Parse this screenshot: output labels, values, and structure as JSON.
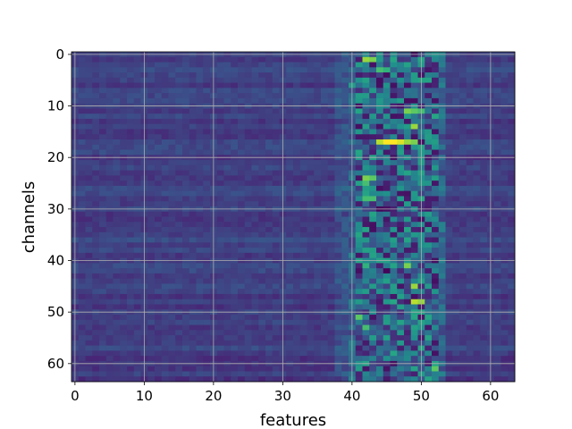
{
  "chart_data": {
    "type": "heatmap",
    "title": "",
    "xlabel": "features",
    "ylabel": "channels",
    "xlim": [
      -0.5,
      63.5
    ],
    "ylim": [
      63.5,
      -0.5
    ],
    "y_inverted": true,
    "grid": true,
    "colormap": "viridis",
    "value_range": [
      0,
      1
    ],
    "xticks": [
      "0",
      "10",
      "20",
      "30",
      "40",
      "50",
      "60"
    ],
    "yticks": [
      "0",
      "10",
      "20",
      "30",
      "40",
      "50",
      "60"
    ],
    "rows": 64,
    "cols": 64,
    "description_of_values": "Mostly uniform mid-low values (~0.22) across features 0-38; high variance band at features 40-53 with bright (yellow) peaks and dark (purple) troughs.",
    "notable_cells": [
      {
        "row": 1,
        "col": 42,
        "value": 0.85
      },
      {
        "row": 1,
        "col": 43,
        "value": 0.8
      },
      {
        "row": 3,
        "col": 44,
        "value": 0.7
      },
      {
        "row": 3,
        "col": 45,
        "value": 0.65
      },
      {
        "row": 4,
        "col": 45,
        "value": 0.05
      },
      {
        "row": 5,
        "col": 44,
        "value": 0.05
      },
      {
        "row": 6,
        "col": 40,
        "value": 0.55
      },
      {
        "row": 11,
        "col": 48,
        "value": 0.8
      },
      {
        "row": 11,
        "col": 49,
        "value": 0.75
      },
      {
        "row": 11,
        "col": 50,
        "value": 0.7
      },
      {
        "row": 14,
        "col": 49,
        "value": 0.85
      },
      {
        "row": 17,
        "col": 44,
        "value": 0.9
      },
      {
        "row": 17,
        "col": 45,
        "value": 1.0
      },
      {
        "row": 17,
        "col": 46,
        "value": 1.0
      },
      {
        "row": 17,
        "col": 47,
        "value": 0.95
      },
      {
        "row": 17,
        "col": 48,
        "value": 0.85
      },
      {
        "row": 17,
        "col": 49,
        "value": 0.8
      },
      {
        "row": 24,
        "col": 42,
        "value": 0.8
      },
      {
        "row": 24,
        "col": 43,
        "value": 0.75
      },
      {
        "row": 25,
        "col": 42,
        "value": 0.7
      },
      {
        "row": 28,
        "col": 42,
        "value": 0.7
      },
      {
        "row": 28,
        "col": 43,
        "value": 0.7
      },
      {
        "row": 30,
        "col": 44,
        "value": 0.02
      },
      {
        "row": 30,
        "col": 45,
        "value": 0.05
      },
      {
        "row": 41,
        "col": 42,
        "value": 0.65
      },
      {
        "row": 41,
        "col": 48,
        "value": 0.8
      },
      {
        "row": 42,
        "col": 45,
        "value": 0.02
      },
      {
        "row": 45,
        "col": 49,
        "value": 0.85
      },
      {
        "row": 48,
        "col": 49,
        "value": 0.9
      },
      {
        "row": 48,
        "col": 50,
        "value": 0.85
      },
      {
        "row": 51,
        "col": 41,
        "value": 0.75
      },
      {
        "row": 53,
        "col": 42,
        "value": 0.7
      },
      {
        "row": 60,
        "col": 46,
        "value": 0.05
      },
      {
        "row": 61,
        "col": 52,
        "value": 0.75
      }
    ]
  }
}
